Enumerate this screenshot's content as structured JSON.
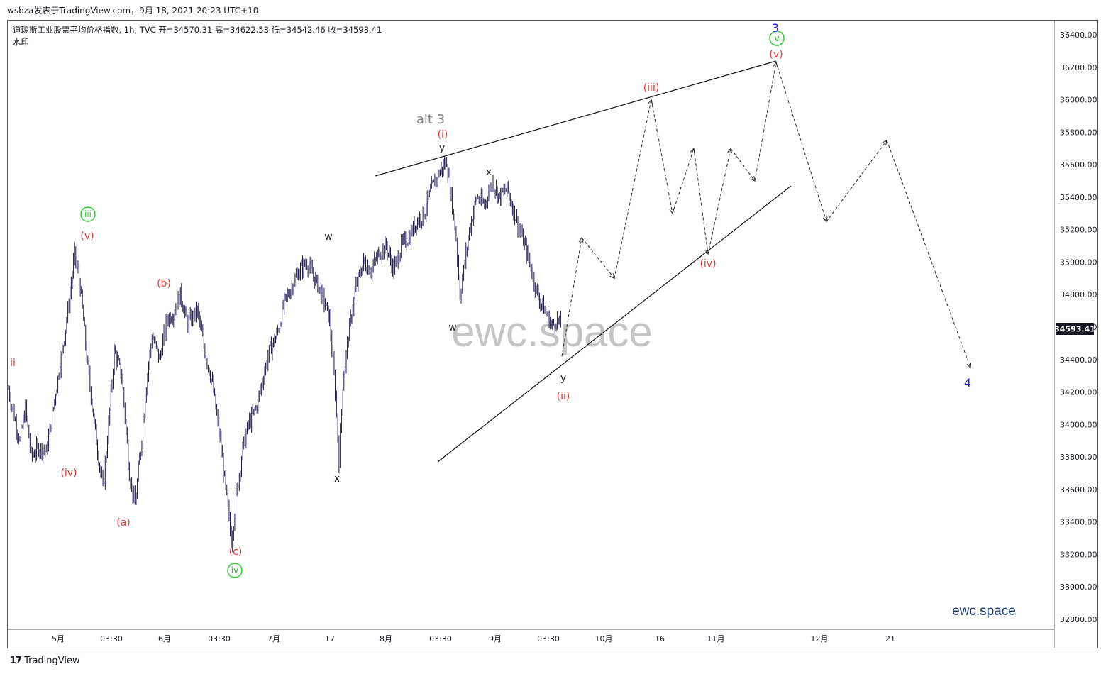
{
  "header": {
    "publisher": "wsbza发表于TradingView.com，9月 18, 2021 20:23 UTC+10"
  },
  "legend": {
    "line1": "道琼斯工业股票平均价格指数, 1h, TVC  开=34570.31  高=34622.53  低=34542.46  收=34593.41",
    "line2": "水印"
  },
  "watermark": {
    "center": "ewc.space",
    "corner": "ewc.space"
  },
  "footer": {
    "logo": "17",
    "brand": "TradingView"
  },
  "colors": {
    "candle": "#1c1a4e",
    "wave_red": "#e53935",
    "wave_green": "#22cc22",
    "wave_blue": "#1a1aff",
    "wave_dark": "#222222",
    "wave_gray": "#808080",
    "watermark": "#bbbbbb",
    "corner_mark": "#1a3a78",
    "last_price_bg": "#131722"
  },
  "chart_data": {
    "type": "line",
    "title": "道琼斯工业股票平均价格指数, 1h, TVC",
    "ohlc_last": {
      "open": 34570.31,
      "high": 34622.53,
      "low": 34542.46,
      "close": 34593.41
    },
    "last_price_label": "34593.41",
    "ylim": [
      32700,
      36500
    ],
    "y_ticks": [
      "36400.00",
      "36200.00",
      "36000.00",
      "35800.00",
      "35600.00",
      "35400.00",
      "35200.00",
      "35000.00",
      "34800.00",
      "34600.00",
      "34400.00",
      "34200.00",
      "34000.00",
      "33800.00",
      "33600.00",
      "33400.00",
      "33200.00",
      "33000.00",
      "32800.00"
    ],
    "x_ticks": [
      "5月",
      "03:30",
      "6月",
      "03:30",
      "7月",
      "17",
      "8月",
      "03:30",
      "9月",
      "03:30",
      "10月",
      "16",
      "11月",
      "12月",
      "21"
    ],
    "price_path": [
      [
        0,
        34220
      ],
      [
        3,
        34050
      ],
      [
        6,
        33900
      ],
      [
        9,
        34100
      ],
      [
        12,
        33800
      ],
      [
        16,
        33860
      ],
      [
        20,
        33830
      ],
      [
        25,
        34200
      ],
      [
        29,
        34500
      ],
      [
        32,
        34750
      ],
      [
        35,
        35050
      ],
      [
        38,
        34850
      ],
      [
        42,
        34350
      ],
      [
        46,
        33950
      ],
      [
        50,
        33600
      ],
      [
        53,
        34000
      ],
      [
        56,
        34450
      ],
      [
        60,
        34300
      ],
      [
        64,
        33700
      ],
      [
        67,
        33500
      ],
      [
        70,
        33850
      ],
      [
        73,
        34250
      ],
      [
        76,
        34550
      ],
      [
        80,
        34400
      ],
      [
        84,
        34650
      ],
      [
        88,
        34700
      ],
      [
        91,
        34800
      ],
      [
        95,
        34620
      ],
      [
        100,
        34700
      ],
      [
        104,
        34450
      ],
      [
        108,
        34250
      ],
      [
        112,
        33900
      ],
      [
        115,
        33600
      ],
      [
        118,
        33280
      ],
      [
        121,
        33600
      ],
      [
        124,
        33850
      ],
      [
        127,
        34000
      ],
      [
        131,
        34100
      ],
      [
        135,
        34300
      ],
      [
        138,
        34450
      ],
      [
        142,
        34550
      ],
      [
        146,
        34750
      ],
      [
        150,
        34850
      ],
      [
        154,
        34950
      ],
      [
        158,
        35000
      ],
      [
        162,
        34900
      ],
      [
        166,
        34800
      ],
      [
        170,
        34650
      ],
      [
        173,
        34200
      ],
      [
        175,
        33780
      ],
      [
        177,
        34250
      ],
      [
        180,
        34550
      ],
      [
        184,
        34850
      ],
      [
        188,
        35000
      ],
      [
        192,
        34950
      ],
      [
        196,
        35050
      ],
      [
        200,
        35100
      ],
      [
        204,
        34950
      ],
      [
        208,
        35100
      ],
      [
        212,
        35150
      ],
      [
        216,
        35250
      ],
      [
        220,
        35300
      ],
      [
        224,
        35450
      ],
      [
        228,
        35550
      ],
      [
        232,
        35620
      ],
      [
        235,
        35350
      ],
      [
        237,
        35150
      ],
      [
        239,
        34800
      ],
      [
        241,
        34950
      ],
      [
        244,
        35200
      ],
      [
        248,
        35400
      ],
      [
        252,
        35350
      ],
      [
        256,
        35500
      ],
      [
        260,
        35400
      ],
      [
        264,
        35450
      ],
      [
        268,
        35300
      ],
      [
        272,
        35150
      ],
      [
        276,
        35000
      ],
      [
        280,
        34800
      ],
      [
        284,
        34700
      ],
      [
        288,
        34600
      ],
      [
        290,
        34650
      ],
      [
        293,
        34593
      ]
    ],
    "projection": [
      [
        34420
      ],
      [
        35150
      ],
      [
        34900
      ],
      [
        36000
      ],
      [
        35300
      ],
      [
        35700
      ],
      [
        35050
      ],
      [
        35700
      ],
      [
        35500
      ],
      [
        36230
      ],
      [
        35250
      ],
      [
        35750
      ],
      [
        34350
      ]
    ],
    "annotations": [
      {
        "text": "ii",
        "color": "red"
      },
      {
        "text": "iii",
        "color": "green",
        "circled": true
      },
      {
        "text": "(v)",
        "color": "red"
      },
      {
        "text": "(iv)",
        "color": "red"
      },
      {
        "text": "(a)",
        "color": "red"
      },
      {
        "text": "(b)",
        "color": "red"
      },
      {
        "text": "(c)",
        "color": "red"
      },
      {
        "text": "iv",
        "color": "green",
        "circled": true
      },
      {
        "text": "w",
        "color": "dark"
      },
      {
        "text": "x",
        "color": "dark"
      },
      {
        "text": "alt 3",
        "color": "gray"
      },
      {
        "text": "(i)",
        "color": "red"
      },
      {
        "text": "y",
        "color": "dark"
      },
      {
        "text": "x",
        "color": "dark"
      },
      {
        "text": "w",
        "color": "dark"
      },
      {
        "text": "y",
        "color": "dark"
      },
      {
        "text": "(ii)",
        "color": "red"
      },
      {
        "text": "(iii)",
        "color": "red"
      },
      {
        "text": "(iv)",
        "color": "red"
      },
      {
        "text": "(v)",
        "color": "red"
      },
      {
        "text": "v",
        "color": "green",
        "circled": true
      },
      {
        "text": "3",
        "color": "blue"
      },
      {
        "text": "4",
        "color": "blue"
      }
    ]
  }
}
